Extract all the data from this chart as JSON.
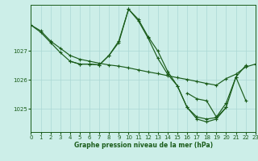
{
  "bg_color": "#cceee8",
  "grid_color": "#aad8d4",
  "line_color": "#1a5c1a",
  "xlabel": "Graphe pression niveau de la mer (hPa)",
  "ylim": [
    1024.2,
    1028.6
  ],
  "xlim": [
    0,
    23
  ],
  "yticks": [
    1025,
    1026,
    1027
  ],
  "series": [
    {
      "x": [
        0,
        1,
        2,
        3,
        4,
        5,
        6,
        7,
        8,
        9,
        10,
        11,
        12,
        13,
        14,
        15,
        16,
        17,
        18,
        19,
        20,
        21,
        22,
        23
      ],
      "y": [
        1027.9,
        1027.7,
        1027.35,
        1027.1,
        1026.85,
        1026.72,
        1026.65,
        1026.58,
        1026.52,
        1026.48,
        1026.42,
        1026.35,
        1026.28,
        1026.22,
        1026.15,
        1026.08,
        1026.02,
        1025.95,
        1025.88,
        1025.82,
        1026.05,
        1026.2,
        1026.45,
        1026.55
      ]
    },
    {
      "x": [
        0,
        1,
        2,
        3,
        4,
        5,
        6,
        7,
        8,
        9,
        10,
        11,
        12,
        13,
        14,
        15,
        16,
        17,
        18,
        19,
        20
      ],
      "y": [
        1027.9,
        1027.65,
        1027.3,
        1026.95,
        1026.65,
        1026.55,
        1026.55,
        1026.52,
        1026.85,
        1027.3,
        1028.45,
        1028.1,
        1027.5,
        1027.0,
        1026.3,
        1025.8,
        1025.05,
        1024.72,
        1024.65,
        1024.7,
        1025.05
      ]
    },
    {
      "x": [
        4,
        5,
        6,
        7,
        8,
        9,
        10,
        11,
        12,
        13,
        14,
        15,
        16,
        17,
        18,
        19,
        20,
        21,
        22
      ],
      "y": [
        1026.65,
        1026.55,
        1026.55,
        1026.52,
        1026.85,
        1027.35,
        1028.45,
        1028.05,
        1027.45,
        1026.75,
        1026.2,
        1025.8,
        1025.05,
        1024.65,
        1024.55,
        1024.65,
        1025.05,
        1026.1,
        1025.3
      ]
    },
    {
      "x": [
        16,
        17,
        18,
        19,
        20,
        21,
        22
      ],
      "y": [
        1025.55,
        1025.35,
        1025.28,
        1024.72,
        1025.2,
        1026.1,
        1026.5
      ]
    }
  ]
}
